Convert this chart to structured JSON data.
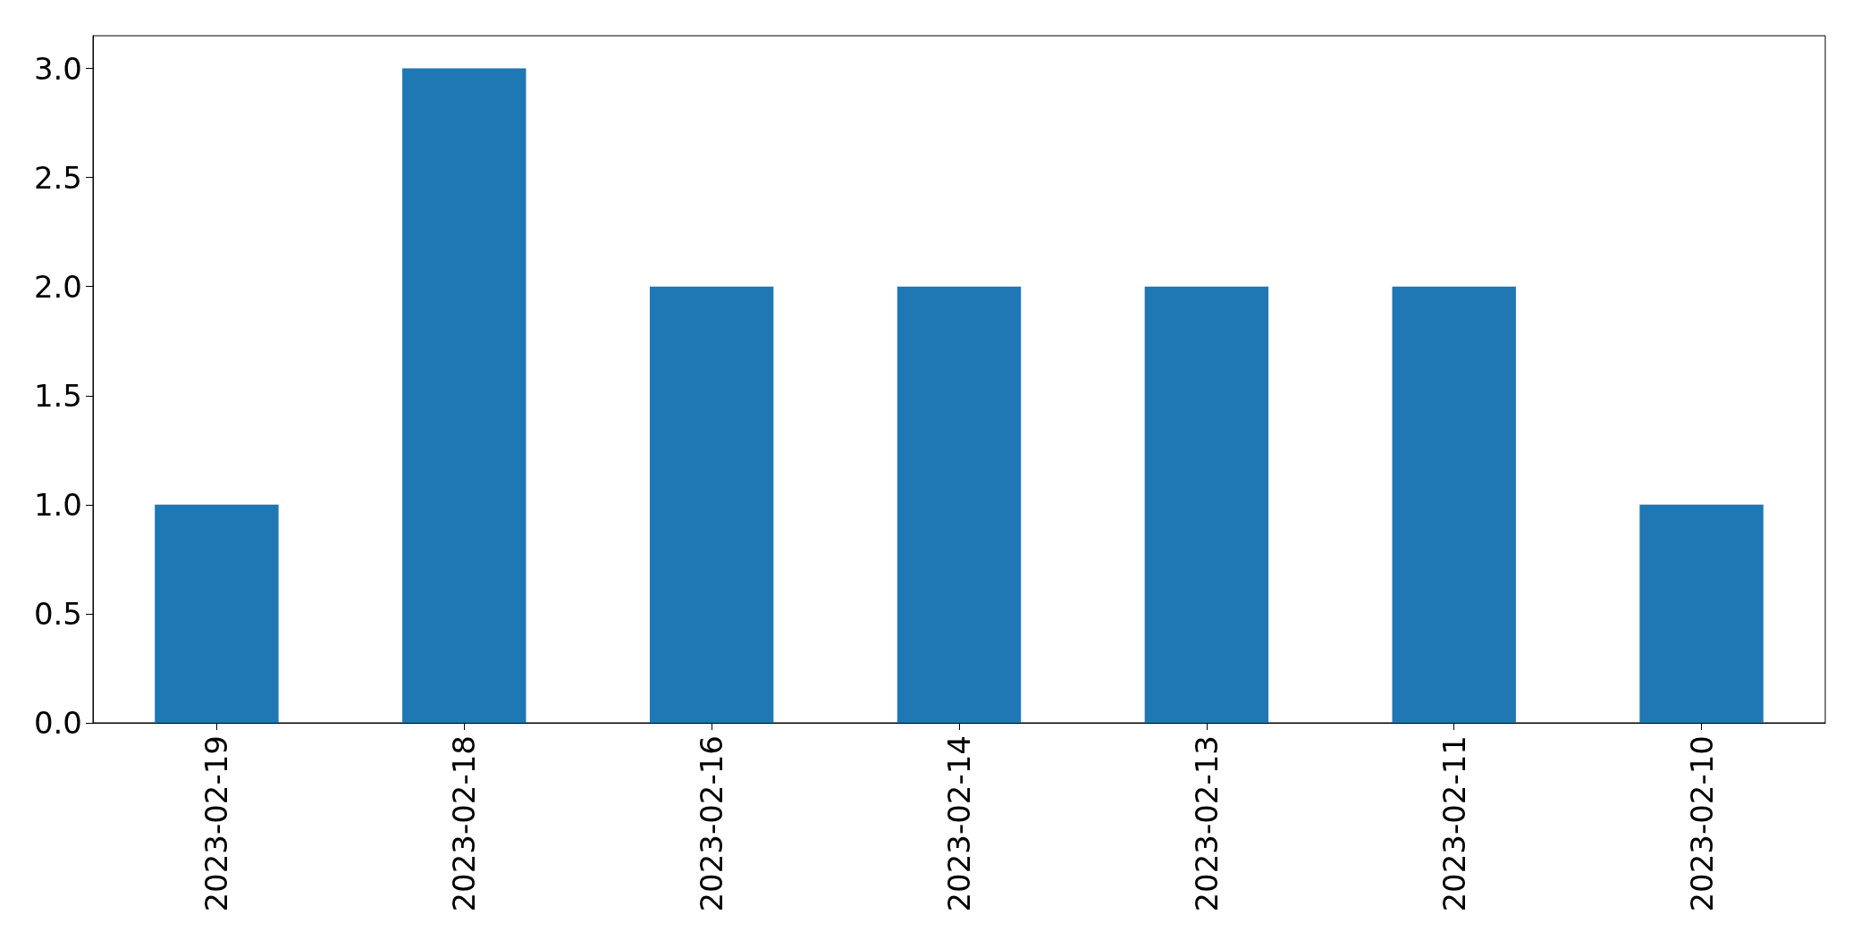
{
  "chart_data": {
    "type": "bar",
    "categories": [
      "2023-02-19",
      "2023-02-18",
      "2023-02-16",
      "2023-02-14",
      "2023-02-13",
      "2023-02-11",
      "2023-02-10"
    ],
    "values": [
      1,
      3,
      2,
      2,
      2,
      2,
      1
    ],
    "color": "#1f77b4",
    "ylim": [
      0,
      3.15
    ],
    "yticks": [
      {
        "value": 0,
        "label": "0.0"
      },
      {
        "value": 0.5,
        "label": "0.5"
      },
      {
        "value": 1,
        "label": "1.0"
      },
      {
        "value": 1.5,
        "label": "1.5"
      },
      {
        "value": 2,
        "label": "2.0"
      },
      {
        "value": 2.5,
        "label": "2.5"
      },
      {
        "value": 3,
        "label": "3.0"
      }
    ],
    "grid": false
  }
}
